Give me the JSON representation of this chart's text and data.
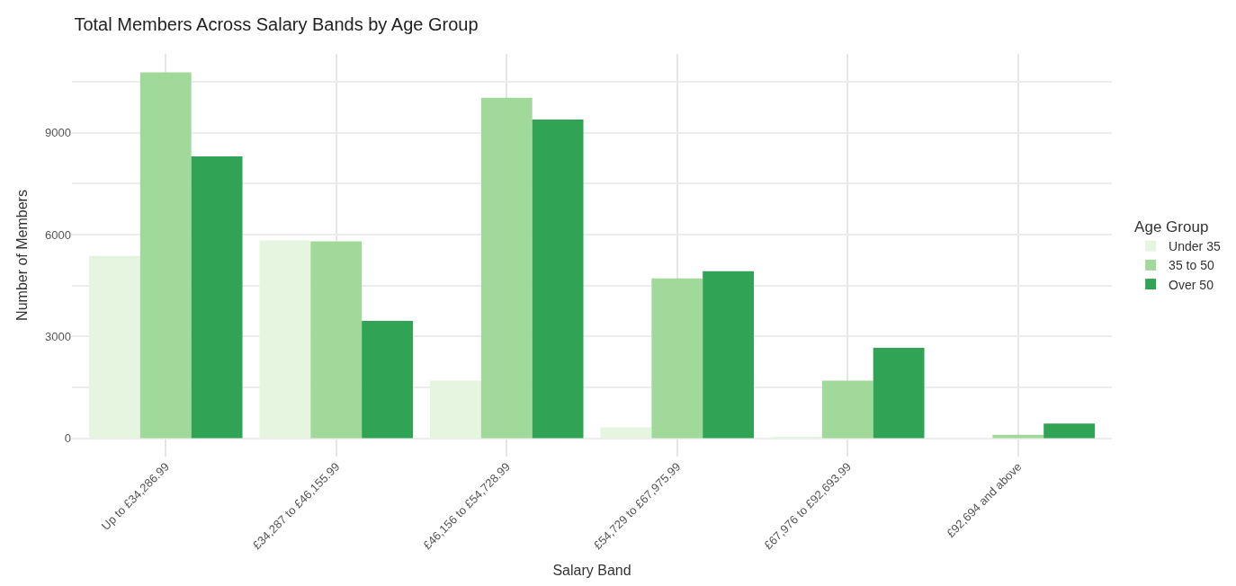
{
  "chart_data": {
    "type": "bar",
    "title": "Total Members Across Salary Bands by Age Group",
    "xlabel": "Salary Band",
    "ylabel": "Number of Members",
    "legend_title": "Age Group",
    "categories": [
      "Up to £34,286.99",
      "£34,287 to £46,155.99",
      "£46,156 to £54,728.99",
      "£54,729 to £67,975.99",
      "£67,976 to £92,693.99",
      "£92,694 and above"
    ],
    "series": [
      {
        "name": "Under 35",
        "color": "#e5f5e0",
        "values": [
          5370,
          5830,
          1700,
          320,
          30,
          null
        ]
      },
      {
        "name": "35 to 50",
        "color": "#a1d99b",
        "values": [
          10780,
          5800,
          10030,
          4710,
          1700,
          100
        ]
      },
      {
        "name": "Over 50",
        "color": "#31a354",
        "values": [
          8300,
          3460,
          9390,
          4920,
          2660,
          430
        ]
      }
    ],
    "ylim": [
      -540,
      11320
    ],
    "yticks": [
      0,
      {
        "value": 1500,
        "label": null
      },
      3000,
      {
        "value": 4500,
        "label": null
      },
      6000,
      {
        "value": 7500,
        "label": null
      },
      9000,
      {
        "value": 10500,
        "label": null
      }
    ],
    "grid": true,
    "legend": "right"
  }
}
